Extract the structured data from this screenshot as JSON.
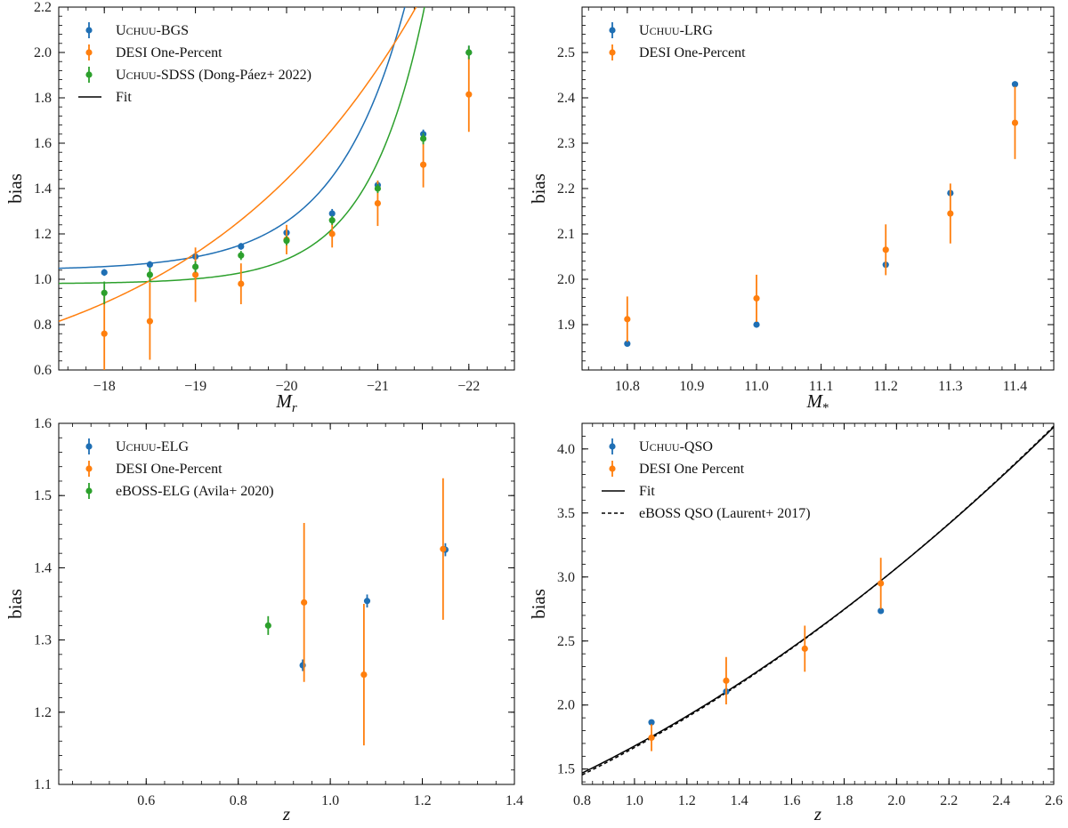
{
  "colors": {
    "blue": "#1f6fb4",
    "orange": "#ff7f0e",
    "green": "#2ca02c",
    "black": "#000000"
  },
  "chart_data": [
    {
      "id": "panel-bgs",
      "type": "scatter",
      "xlabel": "M_r",
      "ylabel": "bias",
      "xlim": [
        -17.5,
        -22.5
      ],
      "ylim": [
        0.6,
        2.2
      ],
      "xticks": [
        -18,
        -19,
        -20,
        -21,
        -22
      ],
      "xtick_labels": [
        "−18",
        "−19",
        "−20",
        "−21",
        "−22"
      ],
      "yticks": [
        0.6,
        0.8,
        1.0,
        1.2,
        1.4,
        1.6,
        1.8,
        2.0,
        2.2
      ],
      "ytick_labels": [
        "0.6",
        "0.8",
        "1.0",
        "1.2",
        "1.4",
        "1.6",
        "1.8",
        "2.0",
        "2.2"
      ],
      "legend_position": "top-left",
      "legend": [
        {
          "label_main": "U",
          "label_sc": "CHUU",
          "label_rest": "-BGS",
          "kind": "errorbar",
          "color": "#1f6fb4"
        },
        {
          "label_main": "DESI One-Percent",
          "label_sc": "",
          "label_rest": "",
          "kind": "errorbar",
          "color": "#ff7f0e"
        },
        {
          "label_main": "U",
          "label_sc": "CHUU",
          "label_rest": "-SDSS (Dong-Páez+ 2022)",
          "kind": "errorbar",
          "color": "#2ca02c"
        },
        {
          "label_main": "Fit",
          "label_sc": "",
          "label_rest": "",
          "kind": "line",
          "color": "#000000"
        }
      ],
      "series": [
        {
          "name": "Uchuu-BGS",
          "color": "#1f6fb4",
          "x": [
            -18,
            -18.5,
            -19,
            -19.5,
            -20,
            -20.5,
            -21,
            -21.5,
            -22
          ],
          "y": [
            1.03,
            1.065,
            1.1,
            1.145,
            1.205,
            1.29,
            1.415,
            1.64,
            2.0
          ],
          "yerr": [
            0.015,
            0.015,
            0.015,
            0.015,
            0.02,
            0.02,
            0.02,
            0.02,
            0.03
          ]
        },
        {
          "name": "DESI One-Percent",
          "color": "#ff7f0e",
          "x": [
            -18,
            -18.5,
            -19,
            -19.5,
            -20,
            -20.5,
            -21,
            -21.5,
            -22
          ],
          "y": [
            0.76,
            0.815,
            1.02,
            0.98,
            1.175,
            1.2,
            1.335,
            1.505,
            1.815
          ],
          "yerr": [
            0.17,
            0.17,
            0.12,
            0.09,
            0.065,
            0.06,
            0.1,
            0.1,
            0.165
          ]
        },
        {
          "name": "Uchuu-SDSS (Dong-Páez+ 2022)",
          "color": "#2ca02c",
          "x": [
            -18,
            -18.5,
            -19,
            -19.5,
            -20,
            -20.5,
            -21,
            -21.5,
            -22
          ],
          "y": [
            0.94,
            1.02,
            1.055,
            1.105,
            1.17,
            1.26,
            1.4,
            1.62,
            2.0
          ],
          "yerr": [
            0.05,
            0.03,
            0.025,
            0.02,
            0.02,
            0.02,
            0.02,
            0.025,
            0.03
          ]
        }
      ],
      "fits": [
        {
          "color": "#1f6fb4",
          "c": 1.04,
          "a": 0.00435,
          "k": 1.3,
          "x0": -17
        },
        {
          "color": "#2ca02c",
          "c": 0.98,
          "a": 0.000892,
          "k": 1.6,
          "x0": -17
        },
        {
          "color": "#ff7f0e",
          "c": 0.45,
          "a": 0.2985,
          "k": 0.4,
          "x0": -17
        }
      ]
    },
    {
      "id": "panel-lrg",
      "type": "scatter",
      "xlabel": "M_*",
      "ylabel": "bias",
      "xlim": [
        10.73,
        11.46
      ],
      "ylim": [
        1.8,
        2.6
      ],
      "xticks": [
        10.8,
        10.9,
        11.0,
        11.1,
        11.2,
        11.3,
        11.4
      ],
      "xtick_labels": [
        "10.8",
        "10.9",
        "11.0",
        "11.1",
        "11.2",
        "11.3",
        "11.4"
      ],
      "yticks": [
        1.9,
        2.0,
        2.1,
        2.2,
        2.3,
        2.4,
        2.5
      ],
      "ytick_labels": [
        "1.9",
        "2.0",
        "2.1",
        "2.2",
        "2.3",
        "2.4",
        "2.5"
      ],
      "legend_position": "top-left",
      "legend": [
        {
          "label_main": "U",
          "label_sc": "CHUU",
          "label_rest": "-LRG",
          "kind": "errorbar",
          "color": "#1f6fb4"
        },
        {
          "label_main": "DESI One-Percent",
          "label_sc": "",
          "label_rest": "",
          "kind": "errorbar",
          "color": "#ff7f0e"
        }
      ],
      "series": [
        {
          "name": "Uchuu-LRG",
          "color": "#1f6fb4",
          "x": [
            10.8,
            11.0,
            11.2,
            11.3,
            11.4
          ],
          "y": [
            1.858,
            1.9,
            2.032,
            2.19,
            2.43
          ],
          "yerr": [
            0.004,
            0.004,
            0.004,
            0.005,
            0.006
          ]
        },
        {
          "name": "DESI One-Percent",
          "color": "#ff7f0e",
          "x": [
            10.8,
            11.0,
            11.2,
            11.3,
            11.4
          ],
          "y": [
            1.912,
            1.958,
            2.065,
            2.145,
            2.345
          ],
          "yerr": [
            0.05,
            0.052,
            0.056,
            0.066,
            0.08
          ]
        }
      ],
      "fits": []
    },
    {
      "id": "panel-elg",
      "type": "scatter",
      "xlabel": "z",
      "ylabel": "bias",
      "xlim": [
        0.41,
        1.4
      ],
      "ylim": [
        1.1,
        1.6
      ],
      "xticks": [
        0.6,
        0.8,
        1.0,
        1.2,
        1.4
      ],
      "xtick_labels": [
        "0.6",
        "0.8",
        "1.0",
        "1.2",
        "1.4"
      ],
      "yticks": [
        1.1,
        1.2,
        1.3,
        1.4,
        1.5,
        1.6
      ],
      "ytick_labels": [
        "1.1",
        "1.2",
        "1.3",
        "1.4",
        "1.5",
        "1.6"
      ],
      "legend_position": "top-left",
      "legend": [
        {
          "label_main": "U",
          "label_sc": "CHUU",
          "label_rest": "-ELG",
          "kind": "errorbar",
          "color": "#1f6fb4"
        },
        {
          "label_main": "DESI One-Percent",
          "label_sc": "",
          "label_rest": "",
          "kind": "errorbar",
          "color": "#ff7f0e"
        },
        {
          "label_main": "eBOSS-ELG (Avila+ 2020)",
          "label_sc": "",
          "label_rest": "",
          "kind": "errorbar",
          "color": "#2ca02c"
        }
      ],
      "series": [
        {
          "name": "Uchuu-ELG",
          "color": "#1f6fb4",
          "x": [
            0.94,
            1.08,
            1.25
          ],
          "y": [
            1.265,
            1.354,
            1.425
          ],
          "yerr": [
            0.008,
            0.009,
            0.009
          ]
        },
        {
          "name": "DESI One-Percent",
          "color": "#ff7f0e",
          "x": [
            0.943,
            1.073,
            1.245
          ],
          "y": [
            1.352,
            1.252,
            1.426
          ],
          "yerr": [
            0.11,
            0.098,
            0.098
          ]
        },
        {
          "name": "eBOSS-ELG (Avila+ 2020)",
          "color": "#2ca02c",
          "x": [
            0.865
          ],
          "y": [
            1.32
          ],
          "yerr": [
            0.013
          ]
        }
      ],
      "fits": []
    },
    {
      "id": "panel-qso",
      "type": "scatter",
      "xlabel": "z",
      "ylabel": "bias",
      "xlim": [
        0.8,
        2.6
      ],
      "ylim": [
        1.38,
        4.2
      ],
      "xticks": [
        0.8,
        1.0,
        1.2,
        1.4,
        1.6,
        1.8,
        2.0,
        2.2,
        2.4,
        2.6
      ],
      "xtick_labels": [
        "0.8",
        "1.0",
        "1.2",
        "1.4",
        "1.6",
        "1.8",
        "2.0",
        "2.2",
        "2.4",
        "2.6"
      ],
      "yticks": [
        1.5,
        2.0,
        2.5,
        3.0,
        3.5,
        4.0
      ],
      "ytick_labels": [
        "1.5",
        "2.0",
        "2.5",
        "3.0",
        "3.5",
        "4.0"
      ],
      "legend_position": "top-left",
      "legend": [
        {
          "label_main": "U",
          "label_sc": "CHUU",
          "label_rest": "-QSO",
          "kind": "errorbar",
          "color": "#1f6fb4"
        },
        {
          "label_main": "DESI One Percent",
          "label_sc": "",
          "label_rest": "",
          "kind": "errorbar",
          "color": "#ff7f0e"
        },
        {
          "label_main": "Fit",
          "label_sc": "",
          "label_rest": "",
          "kind": "line",
          "color": "#000000"
        },
        {
          "label_main": "eBOSS QSO (Laurent+ 2017)",
          "label_sc": "",
          "label_rest": "",
          "kind": "dashed",
          "color": "#000000"
        }
      ],
      "series": [
        {
          "name": "Uchuu-QSO",
          "color": "#1f6fb4",
          "x": [
            1.065,
            1.35,
            1.94
          ],
          "y": [
            1.865,
            2.105,
            2.735
          ],
          "yerr": [
            0.01,
            0.01,
            0.01
          ]
        },
        {
          "name": "DESI One Percent",
          "color": "#ff7f0e",
          "x": [
            1.065,
            1.35,
            1.65,
            1.94
          ],
          "y": [
            1.745,
            2.19,
            2.44,
            2.95
          ],
          "yerr": [
            0.105,
            0.185,
            0.18,
            0.2
          ]
        }
      ],
      "fits": [
        {
          "color": "#000000",
          "style": "solid",
          "quad": [
            0.278,
            0.38,
            3.7
          ]
        },
        {
          "color": "#000000",
          "style": "dashed",
          "quad": [
            0.278,
            0.38,
            3.72
          ]
        }
      ]
    }
  ]
}
